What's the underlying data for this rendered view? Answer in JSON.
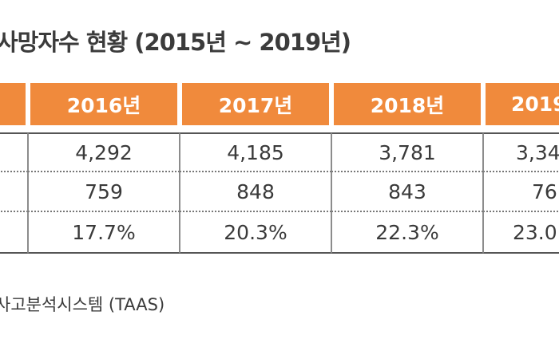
{
  "title": "사망자수 현황 (2015년 ~ 2019년)",
  "table": {
    "headers": [
      "",
      "2016년",
      "2017년",
      "2018년",
      "2019"
    ],
    "rows": [
      [
        "",
        "4,292",
        "4,185",
        "3,781",
        "3,34"
      ],
      [
        "",
        "759",
        "848",
        "843",
        "76"
      ],
      [
        "",
        "17.7%",
        "20.3%",
        "22.3%",
        "23.0"
      ]
    ]
  },
  "source": "사고분석시스템 (TAAS)",
  "colors": {
    "header_bg": "#f08a3c",
    "header_text": "#ffffff",
    "text": "#3a3a3a"
  }
}
